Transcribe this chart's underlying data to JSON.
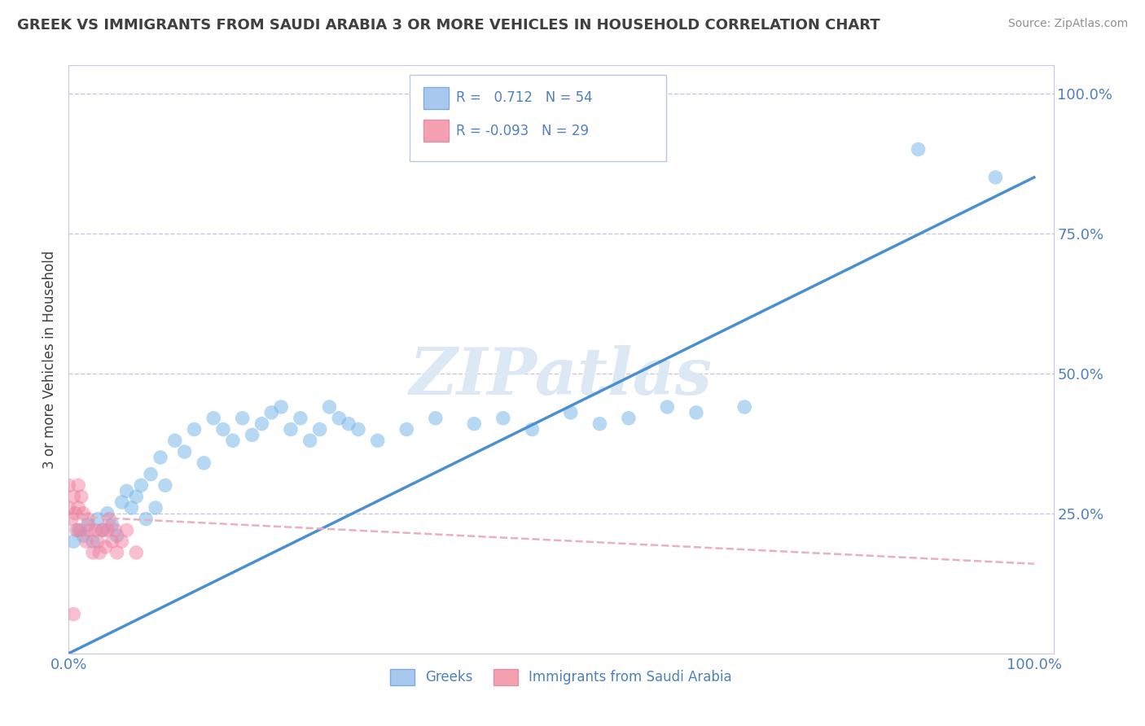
{
  "title": "GREEK VS IMMIGRANTS FROM SAUDI ARABIA 3 OR MORE VEHICLES IN HOUSEHOLD CORRELATION CHART",
  "source": "Source: ZipAtlas.com",
  "ylabel": "3 or more Vehicles in Household",
  "legend_entries": [
    {
      "label": "Greeks",
      "R": "0.712",
      "N": "54",
      "color": "#a8c8f0"
    },
    {
      "label": "Immigrants from Saudi Arabia",
      "R": "-0.093",
      "N": "29",
      "color": "#f4a0b0"
    }
  ],
  "blue_scatter_x": [
    0.005,
    0.01,
    0.015,
    0.02,
    0.025,
    0.03,
    0.035,
    0.04,
    0.045,
    0.05,
    0.055,
    0.06,
    0.065,
    0.07,
    0.075,
    0.08,
    0.085,
    0.09,
    0.095,
    0.1,
    0.11,
    0.12,
    0.13,
    0.14,
    0.15,
    0.16,
    0.17,
    0.18,
    0.19,
    0.2,
    0.21,
    0.22,
    0.23,
    0.24,
    0.25,
    0.26,
    0.27,
    0.28,
    0.29,
    0.3,
    0.32,
    0.35,
    0.38,
    0.42,
    0.45,
    0.48,
    0.52,
    0.55,
    0.58,
    0.62,
    0.65,
    0.7,
    0.88,
    0.96
  ],
  "blue_scatter_y": [
    0.2,
    0.22,
    0.21,
    0.23,
    0.2,
    0.24,
    0.22,
    0.25,
    0.23,
    0.21,
    0.27,
    0.29,
    0.26,
    0.28,
    0.3,
    0.24,
    0.32,
    0.26,
    0.35,
    0.3,
    0.38,
    0.36,
    0.4,
    0.34,
    0.42,
    0.4,
    0.38,
    0.42,
    0.39,
    0.41,
    0.43,
    0.44,
    0.4,
    0.42,
    0.38,
    0.4,
    0.44,
    0.42,
    0.41,
    0.4,
    0.38,
    0.4,
    0.42,
    0.41,
    0.42,
    0.4,
    0.43,
    0.41,
    0.42,
    0.44,
    0.43,
    0.44,
    0.9,
    0.85
  ],
  "pink_scatter_x": [
    0.0,
    0.0,
    0.003,
    0.005,
    0.007,
    0.008,
    0.01,
    0.01,
    0.012,
    0.013,
    0.015,
    0.018,
    0.02,
    0.022,
    0.025,
    0.028,
    0.03,
    0.032,
    0.035,
    0.038,
    0.04,
    0.042,
    0.045,
    0.048,
    0.05,
    0.055,
    0.06,
    0.07,
    0.005
  ],
  "pink_scatter_y": [
    0.26,
    0.3,
    0.24,
    0.28,
    0.25,
    0.22,
    0.26,
    0.3,
    0.22,
    0.28,
    0.25,
    0.2,
    0.24,
    0.22,
    0.18,
    0.22,
    0.2,
    0.18,
    0.22,
    0.19,
    0.22,
    0.24,
    0.2,
    0.22,
    0.18,
    0.2,
    0.22,
    0.18,
    0.07
  ],
  "blue_line_x0": 0.0,
  "blue_line_y0": 0.0,
  "blue_line_x1": 1.0,
  "blue_line_y1": 0.85,
  "pink_line_x0": 0.0,
  "pink_line_y0": 0.245,
  "pink_line_x1": 1.0,
  "pink_line_y1": 0.16,
  "blue_dot_color": "#7ab8e8",
  "pink_dot_color": "#f080a0",
  "blue_line_color": "#4a90d0",
  "pink_line_color": "#e8b0c0",
  "background_color": "#ffffff",
  "grid_color": "#c8c8e0",
  "watermark_text": "ZIPatlas",
  "watermark_color": "#dde8f5",
  "title_color": "#404040",
  "source_color": "#909090",
  "axis_label_color": "#5080c0",
  "ylim": [
    0.0,
    1.05
  ],
  "xlim": [
    0.0,
    1.02
  ]
}
